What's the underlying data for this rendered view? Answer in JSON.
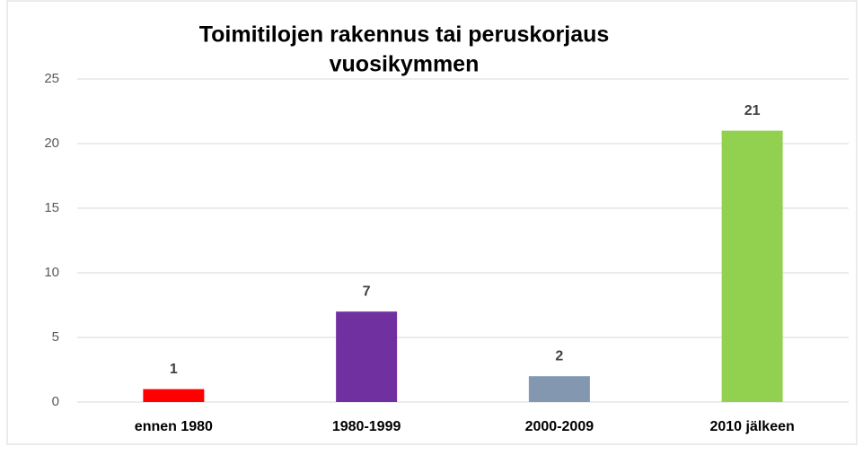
{
  "chart_data": {
    "type": "bar",
    "title": [
      "Toimitilojen rakennus tai peruskorjaus",
      "vuosikymmen"
    ],
    "categories": [
      "ennen 1980",
      "1980-1999",
      "2000-2009",
      "2010 jälkeen"
    ],
    "values": [
      1,
      7,
      2,
      21
    ],
    "colors": [
      "#ff0000",
      "#7030a0",
      "#8497b0",
      "#92d050"
    ],
    "ylim": [
      0,
      25
    ],
    "yticks": [
      0,
      5,
      10,
      15,
      20,
      25
    ],
    "grid": true
  }
}
